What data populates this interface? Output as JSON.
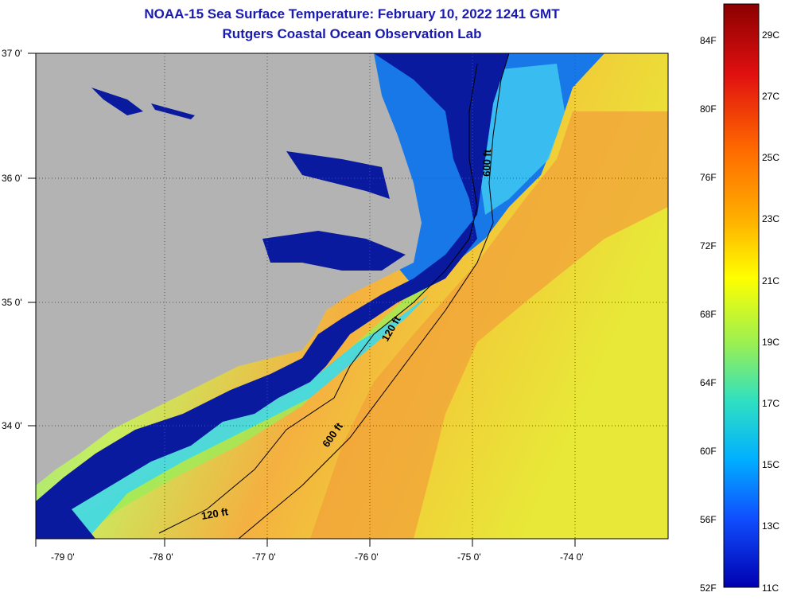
{
  "header": {
    "title": "NOAA-15 Sea Surface Temperature:  February 10, 2022 1241 GMT",
    "subtitle": "Rutgers Coastal Ocean Observation Lab"
  },
  "map": {
    "longitude_labels": [
      "-79 0'",
      "-78 0'",
      "-77 0'",
      "-76 0'",
      "-75 0'",
      "-74 0'"
    ],
    "latitude_labels": [
      "37 0'",
      "36 0'",
      "35 0'",
      "34 0'"
    ],
    "contour_labels": [
      "600 ft",
      "120 ft",
      "600 ft",
      "120 ft"
    ],
    "colors": {
      "land": "#b3b3b3",
      "cold_water": "#0a1a9e",
      "warm_water": "#f09a30",
      "grid": "#555555"
    }
  },
  "colorbar": {
    "fahrenheit_labels": [
      "84F",
      "80F",
      "76F",
      "72F",
      "68F",
      "64F",
      "60F",
      "56F",
      "52F"
    ],
    "celsius_labels": [
      "29C",
      "27C",
      "25C",
      "23C",
      "21C",
      "19C",
      "17C",
      "15C",
      "13C",
      "11C"
    ],
    "gradient": [
      "#8b0000",
      "#e01010",
      "#ff6a00",
      "#ffb000",
      "#ffff00",
      "#9cf050",
      "#30e0c0",
      "#00b0ff",
      "#1050ff",
      "#0000b0"
    ]
  }
}
